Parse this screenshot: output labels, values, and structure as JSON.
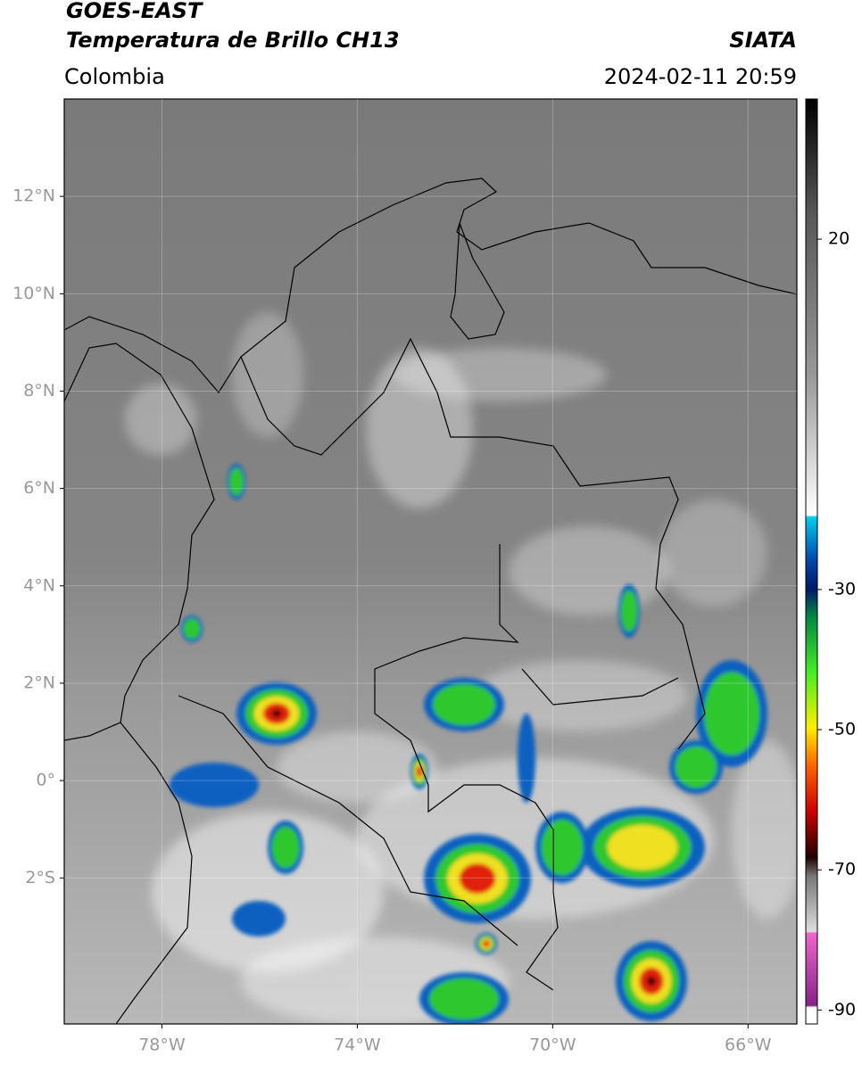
{
  "header": {
    "title": "GOES-EAST",
    "subtitle": "Temperatura de Brillo CH13",
    "region": "Colombia",
    "source": "SIATA",
    "datetime": "2024-02-11 20:59"
  },
  "map": {
    "xlim": [
      -80,
      -65
    ],
    "ylim": [
      -5,
      14
    ],
    "xticks": [
      {
        "value": -78,
        "label": "78°W"
      },
      {
        "value": -74,
        "label": "74°W"
      },
      {
        "value": -70,
        "label": "70°W"
      },
      {
        "value": -66,
        "label": "66°W"
      }
    ],
    "yticks": [
      {
        "value": -2,
        "label": "2°S"
      },
      {
        "value": 0,
        "label": "0°"
      },
      {
        "value": 2,
        "label": "2°N"
      },
      {
        "value": 4,
        "label": "4°N"
      },
      {
        "value": 6,
        "label": "6°N"
      },
      {
        "value": 8,
        "label": "8°N"
      },
      {
        "value": 10,
        "label": "10°N"
      },
      {
        "value": 12,
        "label": "12°N"
      }
    ]
  },
  "colorbar": {
    "ylim": [
      -92,
      40
    ],
    "yticks": [
      20,
      -30,
      -50,
      -70,
      -90
    ]
  }
}
